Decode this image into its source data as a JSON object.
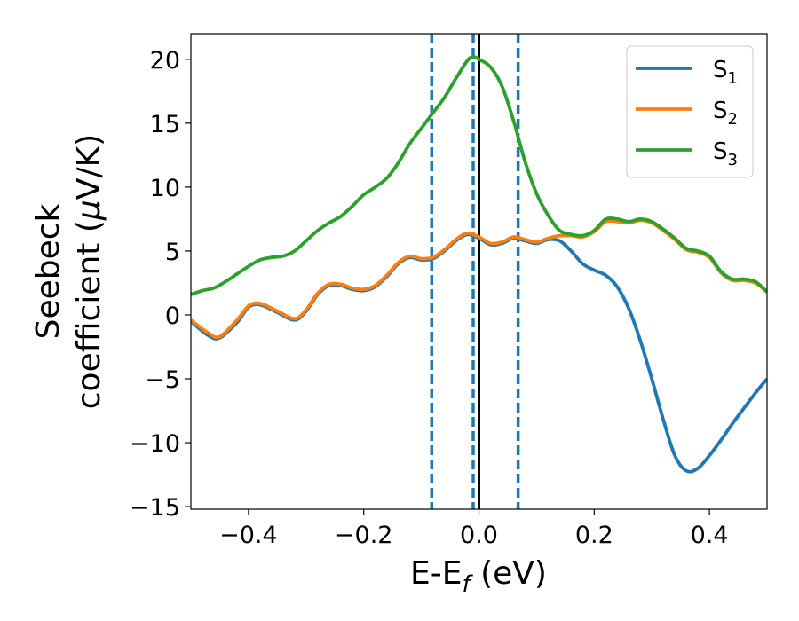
{
  "chart_data": {
    "type": "line",
    "xlabel": "E-E",
    "xlabel_sub": "f",
    "xlabel_unit": " (eV)",
    "ylabel_line1": "Seebeck",
    "ylabel_line2": "coefficient  (",
    "ylabel_mu": "μ",
    "ylabel_tail": "V/K)",
    "xlim": [
      -0.5,
      0.5
    ],
    "ylim": [
      -15.2,
      22
    ],
    "xticks": [
      -0.4,
      -0.2,
      0.0,
      0.2,
      0.4
    ],
    "xtick_labels": [
      "−0.4",
      "−0.2",
      "0.0",
      "0.2",
      "0.4"
    ],
    "yticks": [
      -15,
      -10,
      -5,
      0,
      5,
      10,
      15,
      20
    ],
    "ytick_labels": [
      "−15",
      "−10",
      "−5",
      "0",
      "5",
      "10",
      "15",
      "20"
    ],
    "grid": false,
    "legend_position": "top-right",
    "vlines": [
      {
        "x": -0.082,
        "style": "dashed",
        "color": "#1f77b4"
      },
      {
        "x": -0.01,
        "style": "dashed",
        "color": "#1f77b4"
      },
      {
        "x": 0.068,
        "style": "dashed",
        "color": "#1f77b4"
      },
      {
        "x": 0.0,
        "style": "solid",
        "color": "#000000"
      }
    ],
    "series": [
      {
        "name": "S",
        "sub": "1",
        "color": "#1f77b4",
        "points": [
          [
            -0.5,
            -0.5
          ],
          [
            -0.47,
            -1.6
          ],
          [
            -0.45,
            -1.8
          ],
          [
            -0.42,
            -0.6
          ],
          [
            -0.4,
            0.6
          ],
          [
            -0.38,
            0.8
          ],
          [
            -0.35,
            0.2
          ],
          [
            -0.32,
            -0.4
          ],
          [
            -0.3,
            0.3
          ],
          [
            -0.28,
            1.6
          ],
          [
            -0.26,
            2.3
          ],
          [
            -0.24,
            2.3
          ],
          [
            -0.22,
            2.0
          ],
          [
            -0.2,
            1.9
          ],
          [
            -0.18,
            2.2
          ],
          [
            -0.16,
            3.0
          ],
          [
            -0.14,
            4.0
          ],
          [
            -0.12,
            4.5
          ],
          [
            -0.1,
            4.3
          ],
          [
            -0.08,
            4.4
          ],
          [
            -0.06,
            5.0
          ],
          [
            -0.04,
            5.8
          ],
          [
            -0.02,
            6.3
          ],
          [
            0.0,
            6.0
          ],
          [
            0.02,
            5.5
          ],
          [
            0.04,
            5.6
          ],
          [
            0.06,
            6.0
          ],
          [
            0.08,
            5.8
          ],
          [
            0.1,
            5.6
          ],
          [
            0.12,
            5.9
          ],
          [
            0.14,
            5.8
          ],
          [
            0.16,
            5.0
          ],
          [
            0.18,
            4.0
          ],
          [
            0.2,
            3.5
          ],
          [
            0.22,
            3.1
          ],
          [
            0.24,
            2.2
          ],
          [
            0.26,
            0.5
          ],
          [
            0.28,
            -2.0
          ],
          [
            0.3,
            -5.0
          ],
          [
            0.32,
            -8.2
          ],
          [
            0.34,
            -11.0
          ],
          [
            0.36,
            -12.2
          ],
          [
            0.38,
            -12.0
          ],
          [
            0.4,
            -11.0
          ],
          [
            0.42,
            -9.8
          ],
          [
            0.44,
            -8.5
          ],
          [
            0.46,
            -7.3
          ],
          [
            0.48,
            -6.1
          ],
          [
            0.5,
            -5.0
          ]
        ]
      },
      {
        "name": "S",
        "sub": "2",
        "color": "#ff7f0e",
        "points": [
          [
            -0.5,
            -0.4
          ],
          [
            -0.47,
            -1.4
          ],
          [
            -0.45,
            -1.7
          ],
          [
            -0.42,
            -0.4
          ],
          [
            -0.4,
            0.7
          ],
          [
            -0.38,
            0.9
          ],
          [
            -0.35,
            0.3
          ],
          [
            -0.32,
            -0.3
          ],
          [
            -0.3,
            0.4
          ],
          [
            -0.28,
            1.7
          ],
          [
            -0.26,
            2.4
          ],
          [
            -0.24,
            2.4
          ],
          [
            -0.22,
            2.1
          ],
          [
            -0.2,
            2.0
          ],
          [
            -0.18,
            2.3
          ],
          [
            -0.16,
            3.1
          ],
          [
            -0.14,
            4.1
          ],
          [
            -0.12,
            4.6
          ],
          [
            -0.1,
            4.4
          ],
          [
            -0.08,
            4.5
          ],
          [
            -0.06,
            5.1
          ],
          [
            -0.04,
            5.9
          ],
          [
            -0.02,
            6.4
          ],
          [
            0.0,
            6.1
          ],
          [
            0.02,
            5.6
          ],
          [
            0.04,
            5.7
          ],
          [
            0.06,
            6.1
          ],
          [
            0.08,
            5.9
          ],
          [
            0.1,
            5.7
          ],
          [
            0.12,
            6.0
          ],
          [
            0.14,
            6.2
          ],
          [
            0.16,
            6.2
          ],
          [
            0.18,
            6.1
          ],
          [
            0.2,
            6.5
          ],
          [
            0.22,
            7.3
          ],
          [
            0.24,
            7.3
          ],
          [
            0.26,
            7.2
          ],
          [
            0.28,
            7.4
          ],
          [
            0.3,
            7.2
          ],
          [
            0.32,
            6.6
          ],
          [
            0.34,
            5.9
          ],
          [
            0.36,
            5.1
          ],
          [
            0.38,
            4.9
          ],
          [
            0.4,
            4.5
          ],
          [
            0.42,
            3.3
          ],
          [
            0.44,
            2.7
          ],
          [
            0.46,
            2.7
          ],
          [
            0.48,
            2.5
          ],
          [
            0.5,
            1.8
          ]
        ]
      },
      {
        "name": "S",
        "sub": "3",
        "color": "#2ca02c",
        "points": [
          [
            -0.5,
            1.6
          ],
          [
            -0.48,
            1.9
          ],
          [
            -0.46,
            2.1
          ],
          [
            -0.44,
            2.6
          ],
          [
            -0.42,
            3.2
          ],
          [
            -0.4,
            3.8
          ],
          [
            -0.38,
            4.3
          ],
          [
            -0.36,
            4.5
          ],
          [
            -0.34,
            4.6
          ],
          [
            -0.32,
            5.0
          ],
          [
            -0.3,
            5.8
          ],
          [
            -0.28,
            6.6
          ],
          [
            -0.26,
            7.2
          ],
          [
            -0.24,
            7.7
          ],
          [
            -0.22,
            8.5
          ],
          [
            -0.2,
            9.4
          ],
          [
            -0.18,
            10.0
          ],
          [
            -0.16,
            10.7
          ],
          [
            -0.14,
            11.9
          ],
          [
            -0.12,
            13.4
          ],
          [
            -0.1,
            14.6
          ],
          [
            -0.08,
            15.8
          ],
          [
            -0.06,
            17.0
          ],
          [
            -0.04,
            18.5
          ],
          [
            -0.02,
            19.9
          ],
          [
            -0.01,
            20.2
          ],
          [
            0.0,
            20.0
          ],
          [
            0.02,
            19.4
          ],
          [
            0.04,
            17.9
          ],
          [
            0.06,
            15.2
          ],
          [
            0.08,
            12.0
          ],
          [
            0.1,
            9.5
          ],
          [
            0.12,
            7.8
          ],
          [
            0.14,
            6.6
          ],
          [
            0.16,
            6.3
          ],
          [
            0.18,
            6.2
          ],
          [
            0.2,
            6.6
          ],
          [
            0.22,
            7.5
          ],
          [
            0.24,
            7.5
          ],
          [
            0.26,
            7.3
          ],
          [
            0.28,
            7.5
          ],
          [
            0.3,
            7.3
          ],
          [
            0.32,
            6.7
          ],
          [
            0.34,
            6.0
          ],
          [
            0.36,
            5.2
          ],
          [
            0.38,
            5.0
          ],
          [
            0.4,
            4.6
          ],
          [
            0.42,
            3.4
          ],
          [
            0.44,
            2.8
          ],
          [
            0.46,
            2.8
          ],
          [
            0.48,
            2.6
          ],
          [
            0.5,
            1.8
          ]
        ]
      }
    ]
  }
}
